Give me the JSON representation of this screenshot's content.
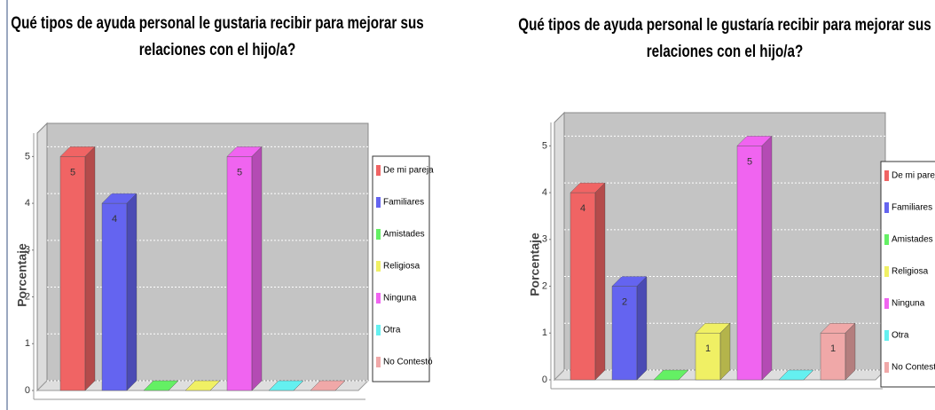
{
  "chart_data": [
    {
      "type": "bar",
      "title": "Qué tipos de ayuda personal le gustaria recibir para mejorar sus relaciones con el hijo/a?",
      "y_label": "Porcentaje",
      "categories": [
        "De mi pareja",
        "Familiares",
        "Amistades",
        "Religiosa",
        "Ninguna",
        "Otra",
        "No Contestó"
      ],
      "values": [
        5,
        4,
        0,
        0,
        5,
        0,
        0
      ],
      "colors": [
        "#f06464",
        "#6464f0",
        "#64f064",
        "#f0f064",
        "#f064f0",
        "#64f0f0",
        "#f0a8a8"
      ],
      "ylim": [
        0,
        5.5
      ],
      "yticks": [
        0,
        1,
        2,
        3,
        4,
        5
      ],
      "grid": true,
      "legend": "right"
    },
    {
      "type": "bar",
      "title": "Qué tipos de ayuda personal le gustaría recibir para mejorar sus relaciones con el hijo/a?",
      "y_label": "Porcentaje",
      "categories": [
        "De mi pareja",
        "Familiares",
        "Amistades",
        "Religiosa",
        "Ninguna",
        "Otra",
        "No Contestó"
      ],
      "values": [
        4,
        2,
        0,
        1,
        5,
        0,
        1
      ],
      "colors": [
        "#f06464",
        "#6464f0",
        "#64f064",
        "#f0f064",
        "#f064f0",
        "#64f0f0",
        "#f0a8a8"
      ],
      "ylim": [
        0,
        5.5
      ],
      "yticks": [
        0,
        1,
        2,
        3,
        4,
        5
      ],
      "grid": true,
      "legend": "right"
    }
  ]
}
